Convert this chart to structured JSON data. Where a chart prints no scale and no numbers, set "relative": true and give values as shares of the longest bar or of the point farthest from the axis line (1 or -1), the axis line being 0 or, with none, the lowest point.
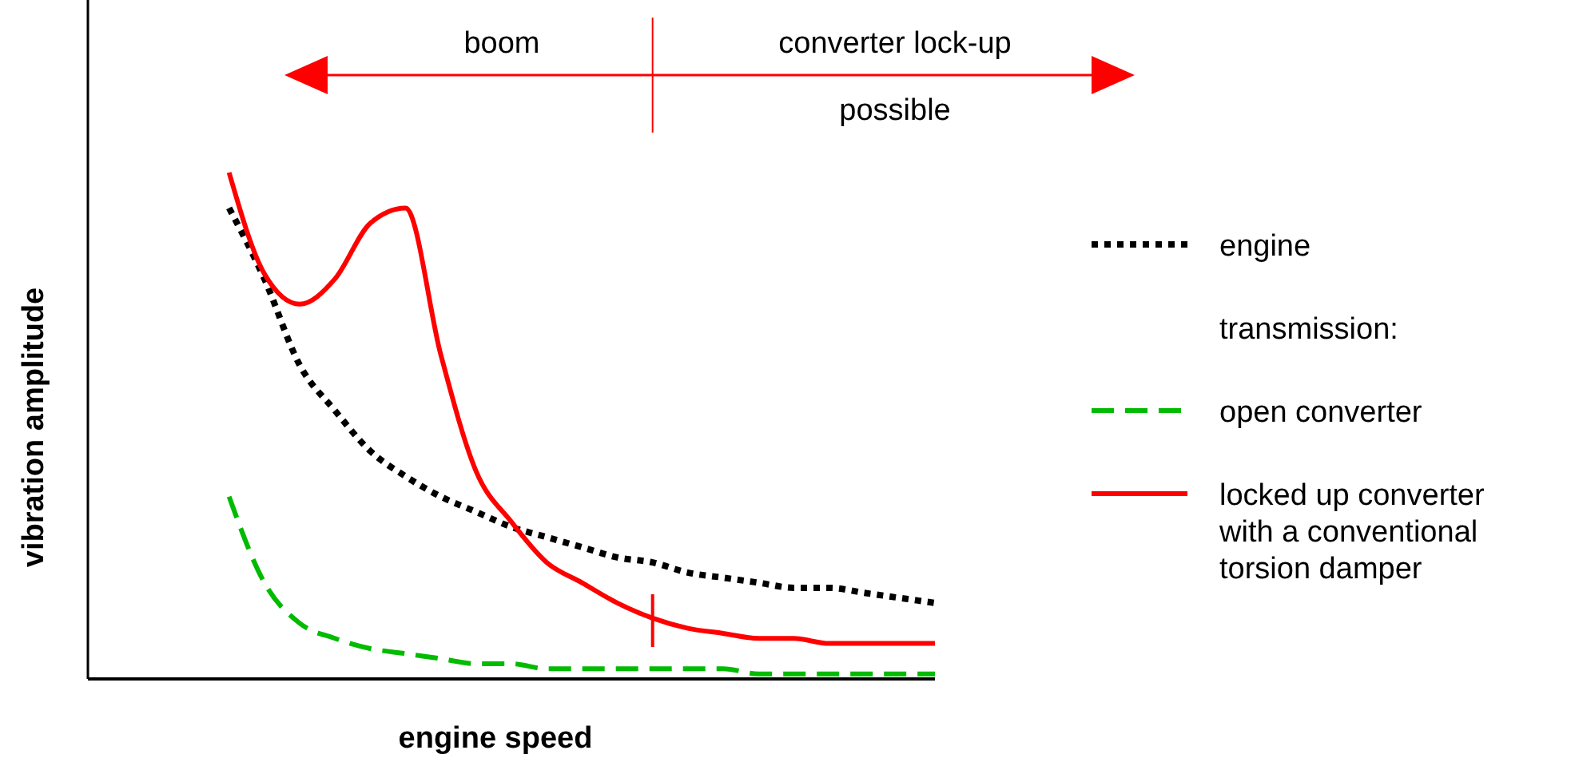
{
  "chart_data": {
    "type": "line",
    "relative": true,
    "xlabel": "engine speed",
    "ylabel": "vibration amplitude",
    "legend": "right",
    "legend_title": "transmission:",
    "annotations": [
      "boom",
      "converter lock-up possible"
    ],
    "categories": [
      null,
      null,
      null,
      null,
      null,
      null,
      null,
      null,
      null,
      null,
      null,
      null,
      null,
      null,
      null,
      null,
      null,
      null,
      null,
      null,
      null,
      null,
      null,
      null,
      null
    ],
    "series": [
      {
        "name": "engine",
        "color": "#000000",
        "line_style": "dotted",
        "values": [
          null,
          null,
          null,
          null,
          0.93,
          0.79,
          0.62,
          0.53,
          0.45,
          0.4,
          0.36,
          0.33,
          0.3,
          0.28,
          0.26,
          0.24,
          0.23,
          0.21,
          0.2,
          0.19,
          0.18,
          0.18,
          0.17,
          0.16,
          0.15
        ]
      },
      {
        "name": "open converter",
        "color": "#00bb00",
        "line_style": "dashed",
        "values": [
          null,
          null,
          null,
          null,
          0.36,
          0.19,
          0.11,
          0.08,
          0.06,
          0.05,
          0.04,
          0.03,
          0.03,
          0.02,
          0.02,
          0.02,
          0.02,
          0.02,
          0.02,
          0.01,
          0.01,
          0.01,
          0.01,
          0.01,
          0.01
        ]
      },
      {
        "name": "locked up converter with a conventional torsion damper",
        "color": "#ff0000",
        "line_style": "solid",
        "values": [
          null,
          null,
          null,
          null,
          1.0,
          0.8,
          0.74,
          0.79,
          0.9,
          0.93,
          0.64,
          0.41,
          0.31,
          0.23,
          0.19,
          0.15,
          0.12,
          0.1,
          0.09,
          0.08,
          0.08,
          0.07,
          0.07,
          0.07,
          0.07
        ]
      }
    ]
  }
}
